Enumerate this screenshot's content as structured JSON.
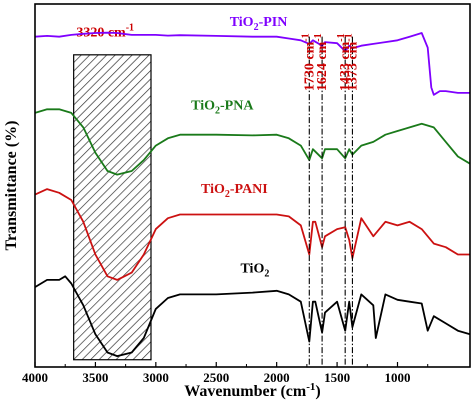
{
  "chart_data": {
    "type": "line",
    "xlabel": "Wavenumber (cm",
    "xlabel_sup": "-1",
    "xlabel_end": ")",
    "ylabel": "Transmittance (%)",
    "xlim": [
      4000,
      400
    ],
    "x_ticks": [
      "4000",
      "3500",
      "3000",
      "2500",
      "2000",
      "1500",
      "1000"
    ],
    "x_tick_values": [
      4000,
      3500,
      3000,
      2500,
      2000,
      1500,
      1000
    ],
    "y_axis_scale": "relative, offset traces, no numeric ticks",
    "band_annotation": {
      "text": "3320 cm",
      "sup": "-1",
      "range": [
        3680,
        3040
      ],
      "hatched": true
    },
    "peak_annotations": [
      {
        "main": "1730 cm",
        "sup": "-1",
        "x": 1730
      },
      {
        "main": "1624 cm",
        "sup": "-1",
        "x": 1624
      },
      {
        "main": "1433 cm",
        "sup": "-1",
        "x": 1433
      },
      {
        "main": "1373 cm",
        "sup": "-1",
        "x": 1373
      }
    ],
    "series": [
      {
        "name": "TiO2-PIN",
        "label_main": "TiO",
        "label_sub": "2",
        "label_rest": "-PIN",
        "color": "#7f00ff",
        "x": [
          4000,
          3900,
          3800,
          3700,
          3600,
          3500,
          3400,
          3320,
          3200,
          3100,
          3000,
          2900,
          2800,
          2500,
          2200,
          2000,
          1900,
          1800,
          1730,
          1700,
          1624,
          1600,
          1500,
          1433,
          1400,
          1373,
          1300,
          1200,
          1100,
          1000,
          900,
          800,
          750,
          720,
          700,
          650,
          600,
          500,
          400
        ],
        "y": [
          91,
          91.2,
          91,
          91.5,
          91.8,
          92,
          92.1,
          92,
          91.5,
          91.5,
          91.5,
          91.3,
          91.4,
          91.2,
          91,
          91,
          90.5,
          90,
          89,
          90,
          88.5,
          89.5,
          89.2,
          87,
          88.5,
          87.8,
          88.5,
          89,
          89.5,
          90,
          91,
          92,
          88,
          77,
          75,
          76,
          76,
          75.5,
          75.5
        ]
      },
      {
        "name": "TiO2-PNA",
        "label_main": "TiO",
        "label_sub": "2",
        "label_rest": "-PNA",
        "color": "#1a7a1a",
        "x": [
          4000,
          3900,
          3800,
          3700,
          3600,
          3500,
          3400,
          3320,
          3200,
          3100,
          3000,
          2900,
          2800,
          2500,
          2200,
          2000,
          1900,
          1800,
          1730,
          1700,
          1624,
          1600,
          1500,
          1433,
          1400,
          1373,
          1300,
          1200,
          1100,
          1000,
          900,
          800,
          700,
          600,
          500,
          400
        ],
        "y": [
          70,
          71,
          71,
          70,
          66,
          59,
          54,
          53,
          54,
          57,
          61,
          63,
          64,
          64,
          63.8,
          64,
          63,
          61,
          57,
          60,
          57.5,
          60,
          60,
          57.5,
          60,
          58.5,
          61,
          62,
          64,
          65,
          66,
          67,
          66,
          62,
          58,
          56
        ]
      },
      {
        "name": "TiO2-PANI",
        "label_main": "TiO",
        "label_sub": "2",
        "label_rest": "-PANI",
        "color": "#cc1111",
        "x": [
          4000,
          3900,
          3800,
          3700,
          3600,
          3500,
          3400,
          3320,
          3200,
          3100,
          3000,
          2900,
          2800,
          2500,
          2200,
          2000,
          1900,
          1800,
          1730,
          1700,
          1680,
          1624,
          1600,
          1500,
          1433,
          1400,
          1373,
          1300,
          1200,
          1100,
          1000,
          900,
          800,
          700,
          600,
          500,
          400
        ],
        "y": [
          47.5,
          49,
          48,
          46,
          40,
          31,
          25,
          24,
          26,
          31,
          38,
          41,
          42,
          42,
          42,
          42,
          41.5,
          39,
          31,
          40,
          40,
          33,
          36,
          38,
          38.5,
          35,
          30,
          41,
          36,
          40,
          39,
          40,
          38,
          34,
          33,
          31,
          31
        ]
      },
      {
        "name": "TiO2",
        "label_main": "TiO",
        "label_sub": "2",
        "label_rest": "",
        "color": "#000000",
        "x": [
          4000,
          3900,
          3800,
          3750,
          3700,
          3600,
          3500,
          3400,
          3320,
          3200,
          3100,
          3000,
          2900,
          2800,
          2500,
          2200,
          2000,
          1900,
          1800,
          1730,
          1700,
          1680,
          1624,
          1600,
          1500,
          1433,
          1400,
          1373,
          1300,
          1200,
          1180,
          1100,
          1000,
          900,
          800,
          750,
          700,
          600,
          500,
          400
        ],
        "y": [
          22,
          24,
          24,
          25,
          23,
          17,
          9,
          4,
          3,
          4,
          8,
          16,
          19,
          20,
          20,
          20.5,
          21,
          20,
          18,
          7,
          18,
          18,
          9.5,
          15,
          18,
          10,
          18,
          11,
          20,
          17,
          8,
          20,
          18.5,
          18,
          17.5,
          10,
          14,
          12,
          10,
          9
        ]
      }
    ]
  }
}
